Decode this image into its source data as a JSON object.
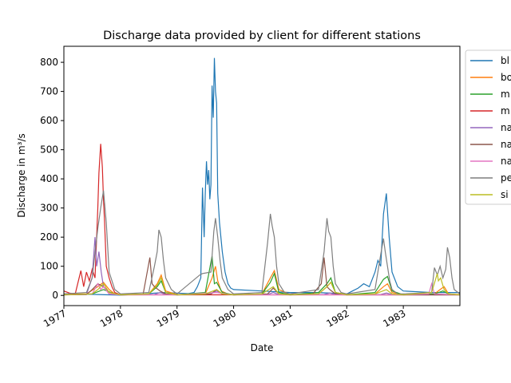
{
  "chart_data": {
    "type": "line",
    "title": "Discharge data provided by client for different stations",
    "xlabel": "Date",
    "ylabel": "Discharge in m³/s",
    "xlim": [
      1977.0,
      1984.0
    ],
    "ylim": [
      -35,
      855
    ],
    "x_ticks": [
      "1977",
      "1978",
      "1979",
      "1980",
      "1981",
      "1982",
      "1983"
    ],
    "y_ticks": [
      0,
      100,
      200,
      300,
      400,
      500,
      600,
      700,
      800
    ],
    "grid": false,
    "legend_position": "outside-right",
    "series": [
      {
        "name": "bl",
        "color": "#1f77b4",
        "x": [
          1977.0,
          1977.2,
          1977.4,
          1977.6,
          1977.8,
          1978.0,
          1978.2,
          1978.4,
          1978.6,
          1978.8,
          1979.0,
          1979.2,
          1979.3,
          1979.36,
          1979.42,
          1979.45,
          1979.48,
          1979.5,
          1979.52,
          1979.54,
          1979.56,
          1979.58,
          1979.6,
          1979.62,
          1979.64,
          1979.66,
          1979.68,
          1979.7,
          1979.72,
          1979.75,
          1979.8,
          1979.85,
          1979.9,
          1979.95,
          1980.0,
          1980.5,
          1981.0,
          1981.5,
          1982.0,
          1982.1,
          1982.2,
          1982.3,
          1982.4,
          1982.5,
          1982.55,
          1982.6,
          1982.65,
          1982.7,
          1982.75,
          1982.8,
          1982.9,
          1983.0,
          1983.5,
          1984.0
        ],
        "y": [
          5,
          3,
          4,
          3,
          2,
          1,
          3,
          4,
          8,
          10,
          8,
          6,
          10,
          30,
          60,
          370,
          200,
          350,
          460,
          380,
          430,
          330,
          380,
          720,
          610,
          815,
          700,
          660,
          350,
          250,
          150,
          80,
          40,
          25,
          20,
          15,
          10,
          10,
          5,
          15,
          25,
          40,
          30,
          80,
          120,
          100,
          280,
          350,
          200,
          80,
          30,
          15,
          10,
          10
        ]
      },
      {
        "name": "bo",
        "color": "#ff7f0e",
        "x": [
          1977.0,
          1977.4,
          1977.6,
          1977.7,
          1977.8,
          1977.9,
          1978.0,
          1978.5,
          1978.65,
          1978.72,
          1978.8,
          1979.0,
          1979.5,
          1979.62,
          1979.68,
          1979.72,
          1979.78,
          1979.9,
          1980.0,
          1980.5,
          1980.65,
          1980.72,
          1980.8,
          1981.0,
          1981.5,
          1981.65,
          1981.72,
          1981.8,
          1982.0,
          1982.5,
          1982.65,
          1982.72,
          1982.8,
          1983.0,
          1983.55,
          1983.65,
          1983.72,
          1983.8,
          1984.0
        ],
        "y": [
          5,
          5,
          30,
          45,
          20,
          5,
          3,
          5,
          40,
          70,
          15,
          3,
          5,
          60,
          100,
          50,
          15,
          5,
          3,
          5,
          60,
          85,
          20,
          3,
          5,
          30,
          45,
          10,
          3,
          5,
          30,
          40,
          10,
          3,
          5,
          20,
          30,
          5,
          3
        ]
      },
      {
        "name": "m",
        "color": "#2ca02c",
        "x": [
          1977.0,
          1977.5,
          1977.7,
          1977.9,
          1978.0,
          1978.5,
          1978.65,
          1978.72,
          1978.8,
          1979.0,
          1979.5,
          1979.62,
          1979.66,
          1979.7,
          1979.8,
          1980.0,
          1980.5,
          1980.65,
          1980.72,
          1980.8,
          1981.0,
          1981.5,
          1981.65,
          1981.72,
          1981.8,
          1982.0,
          1982.5,
          1982.65,
          1982.72,
          1982.8,
          1983.0,
          1983.55,
          1983.7,
          1983.8,
          1984.0
        ],
        "y": [
          2,
          5,
          20,
          5,
          2,
          5,
          30,
          50,
          10,
          2,
          10,
          135,
          40,
          45,
          10,
          2,
          5,
          45,
          75,
          10,
          2,
          10,
          40,
          60,
          10,
          2,
          10,
          55,
          65,
          15,
          2,
          5,
          15,
          5,
          2
        ]
      },
      {
        "name": "m",
        "color": "#d62728",
        "x": [
          1977.0,
          1977.1,
          1977.2,
          1977.3,
          1977.35,
          1977.4,
          1977.45,
          1977.5,
          1977.55,
          1977.6,
          1977.62,
          1977.65,
          1977.68,
          1977.7,
          1977.72,
          1977.75,
          1977.8,
          1977.85,
          1977.9,
          1978.0,
          1978.5,
          1979.0,
          1984.0
        ],
        "y": [
          15,
          8,
          5,
          85,
          30,
          80,
          50,
          90,
          60,
          300,
          420,
          520,
          440,
          330,
          250,
          100,
          60,
          30,
          10,
          2,
          2,
          2,
          2
        ]
      },
      {
        "name": "na",
        "color": "#9467bd",
        "x": [
          1977.0,
          1977.4,
          1977.5,
          1977.55,
          1977.58,
          1977.62,
          1977.66,
          1977.7,
          1977.8,
          1978.0,
          1978.6,
          1978.7,
          1978.8,
          1979.0,
          1979.6,
          1979.7,
          1979.8,
          1980.0,
          1980.6,
          1980.7,
          1980.8,
          1981.0,
          1981.6,
          1981.7,
          1981.8,
          1982.0,
          1982.6,
          1982.7,
          1982.8,
          1983.0,
          1984.0
        ],
        "y": [
          2,
          3,
          60,
          200,
          100,
          150,
          80,
          30,
          5,
          2,
          3,
          10,
          3,
          2,
          5,
          15,
          5,
          2,
          3,
          10,
          3,
          2,
          3,
          8,
          3,
          2,
          3,
          8,
          3,
          2,
          2
        ]
      },
      {
        "name": "na",
        "color": "#8c564b",
        "x": [
          1977.0,
          1977.4,
          1977.5,
          1977.6,
          1977.7,
          1977.8,
          1978.0,
          1978.4,
          1978.52,
          1978.56,
          1978.6,
          1978.7,
          1978.8,
          1979.0,
          1979.6,
          1979.7,
          1979.8,
          1980.0,
          1980.6,
          1980.7,
          1980.8,
          1981.0,
          1981.4,
          1981.55,
          1981.6,
          1981.65,
          1981.7,
          1981.8,
          1982.0,
          1983.0,
          1984.0
        ],
        "y": [
          2,
          3,
          20,
          40,
          30,
          10,
          2,
          3,
          130,
          40,
          30,
          15,
          5,
          2,
          5,
          20,
          5,
          2,
          5,
          25,
          5,
          2,
          5,
          40,
          130,
          30,
          20,
          5,
          2,
          2,
          2
        ]
      },
      {
        "name": "na",
        "color": "#e377c2",
        "x": [
          1977.0,
          1977.5,
          1977.6,
          1977.65,
          1977.7,
          1977.8,
          1978.0,
          1979.0,
          1979.7,
          1980.0,
          1981.0,
          1982.0,
          1983.0,
          1983.45,
          1983.5,
          1983.55,
          1984.0
        ],
        "y": [
          2,
          5,
          40,
          20,
          30,
          5,
          2,
          2,
          10,
          2,
          2,
          2,
          2,
          5,
          40,
          5,
          2
        ]
      },
      {
        "name": "pe",
        "color": "#7f7f7f",
        "x": [
          1977.0,
          1977.4,
          1977.5,
          1977.6,
          1977.65,
          1977.7,
          1977.75,
          1977.8,
          1977.9,
          1978.0,
          1978.5,
          1978.6,
          1978.65,
          1978.68,
          1978.72,
          1978.76,
          1978.8,
          1978.9,
          1979.0,
          1979.4,
          1979.45,
          1979.6,
          1979.65,
          1979.68,
          1979.72,
          1979.76,
          1979.8,
          1979.9,
          1980.0,
          1980.5,
          1980.6,
          1980.65,
          1980.68,
          1980.72,
          1980.76,
          1980.8,
          1980.9,
          1981.0,
          1981.5,
          1981.6,
          1981.65,
          1981.68,
          1981.72,
          1981.76,
          1981.8,
          1981.9,
          1982.0,
          1982.5,
          1982.6,
          1982.65,
          1982.68,
          1982.72,
          1982.76,
          1982.8,
          1982.9,
          1983.0,
          1983.5,
          1983.55,
          1983.6,
          1983.65,
          1983.7,
          1983.75,
          1983.78,
          1983.82,
          1983.86,
          1983.9,
          1984.0
        ],
        "y": [
          5,
          10,
          60,
          230,
          300,
          360,
          250,
          80,
          20,
          5,
          10,
          100,
          150,
          225,
          200,
          120,
          60,
          20,
          5,
          70,
          75,
          80,
          220,
          265,
          200,
          120,
          60,
          20,
          5,
          10,
          180,
          280,
          240,
          200,
          100,
          40,
          10,
          5,
          20,
          150,
          265,
          220,
          200,
          100,
          40,
          10,
          5,
          20,
          140,
          195,
          150,
          100,
          50,
          20,
          5,
          5,
          10,
          95,
          70,
          100,
          60,
          90,
          165,
          130,
          60,
          20,
          5
        ]
      },
      {
        "name": "si",
        "color": "#bcbd22",
        "x": [
          1977.0,
          1977.5,
          1977.6,
          1977.7,
          1977.8,
          1978.0,
          1978.5,
          1978.65,
          1978.72,
          1978.8,
          1979.0,
          1979.5,
          1979.7,
          1979.8,
          1980.0,
          1980.5,
          1980.7,
          1980.8,
          1981.0,
          1981.5,
          1981.65,
          1981.72,
          1981.8,
          1982.0,
          1982.5,
          1982.7,
          1982.8,
          1983.0,
          1983.5,
          1983.6,
          1983.62,
          1983.66,
          1983.72,
          1983.8,
          1984.0
        ],
        "y": [
          2,
          5,
          20,
          40,
          10,
          2,
          5,
          35,
          60,
          10,
          2,
          5,
          20,
          5,
          2,
          5,
          30,
          5,
          2,
          5,
          30,
          45,
          10,
          2,
          5,
          20,
          5,
          2,
          10,
          75,
          50,
          60,
          20,
          5,
          2
        ]
      }
    ]
  }
}
